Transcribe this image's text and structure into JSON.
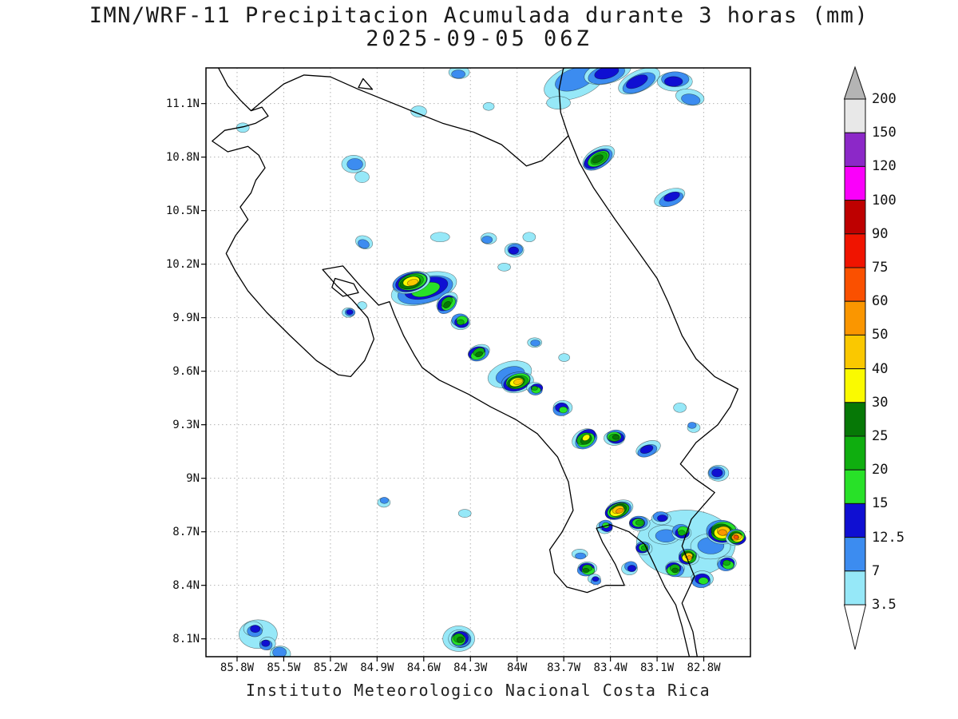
{
  "title": {
    "line1": "IMN/WRF-11 Precipitacion Acumulada durante 3 horas (mm)",
    "line2": "2025-09-05 06Z"
  },
  "footer": "Instituto Meteorologico Nacional Costa Rica",
  "map": {
    "lat_ticks": [
      "11.1N",
      "10.8N",
      "10.5N",
      "10.2N",
      "9.9N",
      "9.6N",
      "9.3N",
      "9N",
      "8.7N",
      "8.4N",
      "8.1N"
    ],
    "lat_values": [
      11.1,
      10.8,
      10.5,
      10.2,
      9.9,
      9.6,
      9.3,
      9.0,
      8.7,
      8.4,
      8.1
    ],
    "lon_ticks": [
      "85.8W",
      "85.5W",
      "85.2W",
      "84.9W",
      "84.6W",
      "84.3W",
      "84W",
      "83.7W",
      "83.4W",
      "83.1W",
      "82.8W"
    ],
    "lon_values": [
      -85.8,
      -85.5,
      -85.2,
      -84.9,
      -84.6,
      -84.3,
      -84.0,
      -83.7,
      -83.4,
      -83.1,
      -82.8
    ],
    "lat_range": [
      8.0,
      11.3
    ],
    "lon_range": [
      -86.0,
      -82.5
    ],
    "grid": "dotted"
  },
  "colorbar": {
    "levels_top_to_bottom": [
      "200",
      "150",
      "120",
      "100",
      "90",
      "75",
      "60",
      "50",
      "40",
      "30",
      "25",
      "20",
      "15",
      "12.5",
      "7",
      "3.5"
    ],
    "segment_colors_top_to_bottom": [
      "#e8e8e8",
      "#8c28c8",
      "#fa00fa",
      "#be0000",
      "#f01400",
      "#fa5000",
      "#fa9600",
      "#fac800",
      "#fafa00",
      "#067806",
      "#0fae0f",
      "#28e128",
      "#0f0fd2",
      "#3c8cf0",
      "#96e8f8"
    ],
    "over_color": "#b4b4b4",
    "under_color": "#ffffff"
  },
  "palette": {
    "thresholds_mm": [
      3.5,
      7,
      12.5,
      15,
      20,
      25,
      30,
      40,
      50,
      60
    ],
    "colors": [
      "#96e8f8",
      "#3c8cf0",
      "#0f0fd2",
      "#28e128",
      "#0fae0f",
      "#067806",
      "#fafa00",
      "#fac800",
      "#fa9600",
      "#fa5000"
    ]
  },
  "cell_fields": [
    "lon",
    "lat",
    "rx_px",
    "ry_px",
    "rot_deg",
    "peak_mm"
  ],
  "precip_cells": [
    [
      -83.63,
      11.23,
      40,
      20,
      -20,
      7
    ],
    [
      -83.42,
      11.27,
      30,
      14,
      -15,
      12.5
    ],
    [
      -83.22,
      11.22,
      28,
      13,
      -25,
      12.5
    ],
    [
      -82.99,
      11.23,
      22,
      12,
      0,
      12.5
    ],
    [
      -82.89,
      11.13,
      18,
      10,
      10,
      7
    ],
    [
      -83.74,
      11.1,
      15,
      8,
      0,
      3.5
    ],
    [
      -83.48,
      10.79,
      22,
      12,
      -30,
      25
    ],
    [
      -83.01,
      10.57,
      20,
      10,
      -20,
      12.5
    ],
    [
      -85.05,
      10.76,
      15,
      11,
      0,
      7
    ],
    [
      -85.0,
      10.69,
      9,
      7,
      0,
      3.5
    ],
    [
      -85.77,
      10.96,
      8,
      6,
      0,
      3.5
    ],
    [
      -84.64,
      11.05,
      10,
      7,
      0,
      3.5
    ],
    [
      -84.38,
      11.27,
      13,
      8,
      0,
      7
    ],
    [
      -84.19,
      11.08,
      7,
      5,
      0,
      3.5
    ],
    [
      -84.99,
      10.32,
      11,
      8,
      20,
      7
    ],
    [
      -84.49,
      10.35,
      12,
      6,
      0,
      3.5
    ],
    [
      -84.19,
      10.34,
      10,
      7,
      0,
      7
    ],
    [
      -84.02,
      10.28,
      12,
      9,
      0,
      12.5
    ],
    [
      -83.93,
      10.35,
      8,
      6,
      0,
      3.5
    ],
    [
      -84.09,
      10.18,
      8,
      5,
      0,
      3.5
    ],
    [
      -84.59,
      10.06,
      42,
      19,
      -15,
      15
    ],
    [
      -84.68,
      10.1,
      24,
      13,
      -15,
      40
    ],
    [
      -84.45,
      9.98,
      15,
      10,
      -40,
      25
    ],
    [
      -84.36,
      9.88,
      12,
      9,
      0,
      20
    ],
    [
      -85.08,
      9.93,
      8,
      6,
      0,
      12.5
    ],
    [
      -85.0,
      9.97,
      6,
      5,
      0,
      3.5
    ],
    [
      -84.25,
      9.7,
      14,
      9,
      -20,
      25
    ],
    [
      -83.88,
      9.76,
      9,
      6,
      0,
      7
    ],
    [
      -83.69,
      9.67,
      7,
      5,
      0,
      3.5
    ],
    [
      -84.04,
      9.58,
      28,
      16,
      -15,
      7
    ],
    [
      -84.0,
      9.54,
      20,
      12,
      -15,
      40
    ],
    [
      -83.88,
      9.5,
      10,
      7,
      0,
      20
    ],
    [
      -83.71,
      9.39,
      12,
      9,
      0,
      15
    ],
    [
      -83.56,
      9.22,
      16,
      11,
      -30,
      30
    ],
    [
      -83.37,
      9.23,
      13,
      9,
      0,
      25
    ],
    [
      -83.16,
      9.16,
      16,
      9,
      -20,
      12.5
    ],
    [
      -82.96,
      9.39,
      8,
      6,
      0,
      3.5
    ],
    [
      -82.87,
      9.29,
      8,
      6,
      0,
      7
    ],
    [
      -82.71,
      9.03,
      13,
      10,
      0,
      12.5
    ],
    [
      -84.86,
      8.87,
      8,
      6,
      0,
      7
    ],
    [
      -84.33,
      8.81,
      8,
      5,
      0,
      3.5
    ],
    [
      -82.91,
      8.64,
      62,
      42,
      0,
      3.5
    ],
    [
      -82.75,
      8.62,
      25,
      16,
      0,
      7
    ],
    [
      -83.05,
      8.68,
      20,
      12,
      0,
      7
    ],
    [
      -83.35,
      8.82,
      18,
      11,
      -20,
      50
    ],
    [
      -83.22,
      8.75,
      13,
      9,
      0,
      20
    ],
    [
      -83.43,
      8.73,
      10,
      8,
      0,
      15
    ],
    [
      -83.07,
      8.78,
      12,
      8,
      0,
      12.5
    ],
    [
      -82.94,
      8.7,
      12,
      9,
      0,
      20
    ],
    [
      -82.68,
      8.7,
      20,
      14,
      0,
      50
    ],
    [
      -82.59,
      8.67,
      12,
      9,
      0,
      60
    ],
    [
      -82.9,
      8.56,
      12,
      9,
      0,
      50
    ],
    [
      -82.99,
      8.49,
      12,
      9,
      0,
      25
    ],
    [
      -83.19,
      8.61,
      10,
      8,
      0,
      20
    ],
    [
      -82.81,
      8.43,
      14,
      10,
      0,
      15
    ],
    [
      -82.65,
      8.52,
      12,
      9,
      0,
      20
    ],
    [
      -83.27,
      8.5,
      10,
      8,
      0,
      12.5
    ],
    [
      -83.55,
      8.49,
      12,
      8,
      0,
      25
    ],
    [
      -83.5,
      8.43,
      8,
      6,
      0,
      12.5
    ],
    [
      -83.59,
      8.57,
      10,
      6,
      0,
      7
    ],
    [
      -85.66,
      8.12,
      24,
      18,
      0,
      3.5
    ],
    [
      -85.69,
      8.15,
      12,
      9,
      0,
      12.5
    ],
    [
      -85.61,
      8.07,
      10,
      8,
      0,
      12.5
    ],
    [
      -85.52,
      8.02,
      13,
      10,
      0,
      7
    ],
    [
      -84.37,
      8.1,
      20,
      16,
      0,
      7
    ],
    [
      -84.37,
      8.1,
      13,
      11,
      0,
      25
    ]
  ]
}
